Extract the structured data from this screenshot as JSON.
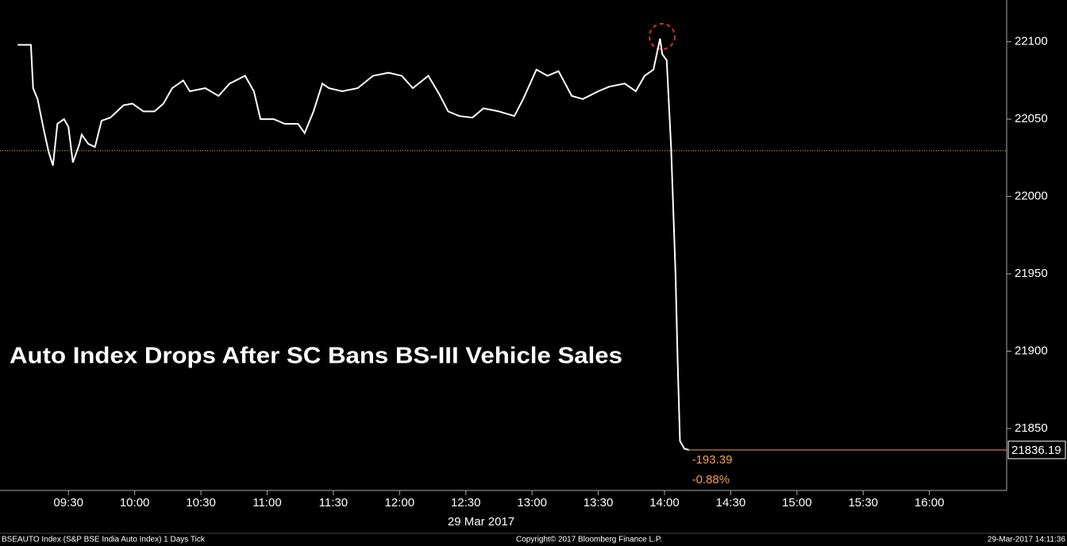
{
  "chart_data": {
    "type": "line",
    "title": "Auto Index Drops After SC Bans BS-III Vehicle Sales",
    "x_label": "29 Mar 2017",
    "x": [
      "09:07",
      "09:13",
      "09:14",
      "09:16",
      "09:19",
      "09:21",
      "09:23",
      "09:25",
      "09:28",
      "09:30",
      "09:32",
      "09:35",
      "09:36",
      "09:39",
      "09:42",
      "09:45",
      "09:49",
      "09:55",
      "09:59",
      "10:04",
      "10:09",
      "10:13",
      "10:17",
      "10:22",
      "10:25",
      "10:32",
      "10:38",
      "10:43",
      "10:50",
      "10:54",
      "10:57",
      "11:03",
      "11:08",
      "11:14",
      "11:17",
      "11:21",
      "11:25",
      "11:28",
      "11:34",
      "11:41",
      "11:48",
      "11:55",
      "12:01",
      "12:06",
      "12:13",
      "12:18",
      "12:22",
      "12:27",
      "12:33",
      "12:38",
      "12:45",
      "12:52",
      "12:56",
      "13:02",
      "13:07",
      "13:12",
      "13:18",
      "13:23",
      "13:30",
      "13:35",
      "13:42",
      "13:47",
      "13:51",
      "13:55",
      "13:58",
      "13:59",
      "14:01",
      "14:03",
      "14:05",
      "14:06",
      "14:07",
      "14:09",
      "14:11"
    ],
    "series": [
      {
        "name": "BSEAUTO Index",
        "color": "#ffffff",
        "values": [
          22098,
          22098,
          22070,
          22063,
          22042,
          22029,
          22020,
          22047,
          22050,
          22045,
          22022,
          22034,
          22040,
          22034,
          22032,
          22049,
          22051,
          22059,
          22060,
          22055,
          22055,
          22060,
          22070,
          22075,
          22068,
          22070,
          22065,
          22073,
          22078,
          22068,
          22050,
          22050,
          22047,
          22047,
          22041,
          22055,
          22073,
          22070,
          22068,
          22070,
          22078,
          22080,
          22078,
          22070,
          22078,
          22066,
          22055,
          22052,
          22051,
          22057,
          22055,
          22052,
          22063,
          22082,
          22078,
          22081,
          22065,
          22063,
          22068,
          22071,
          22073,
          22068,
          22078,
          22082,
          22102,
          22092,
          22088,
          22032,
          21950,
          21891,
          21842,
          21837,
          21836.19
        ]
      }
    ],
    "xlim": [
      "08:59",
      "16:35"
    ],
    "xticks": [
      "09:30",
      "10:00",
      "10:30",
      "11:00",
      "11:30",
      "12:00",
      "12:30",
      "13:00",
      "13:30",
      "14:00",
      "14:30",
      "15:00",
      "15:30",
      "16:00"
    ],
    "ylim": [
      21810,
      22127
    ],
    "yticks": [
      21850,
      21900,
      21950,
      22000,
      22050,
      22100
    ],
    "reference_line": 22029.58,
    "last_value": 21836.19,
    "last_value_color": "#f0a050",
    "change_labels": [
      "-193.39",
      "-0.88%"
    ],
    "footer": {
      "left": "BSEAUTO Index (S&P BSE India Auto Index) 1 Days  Tick",
      "center": "Copyright© 2017 Bloomberg Finance L.P.",
      "right": "29-Mar-2017 14:11:36"
    }
  }
}
